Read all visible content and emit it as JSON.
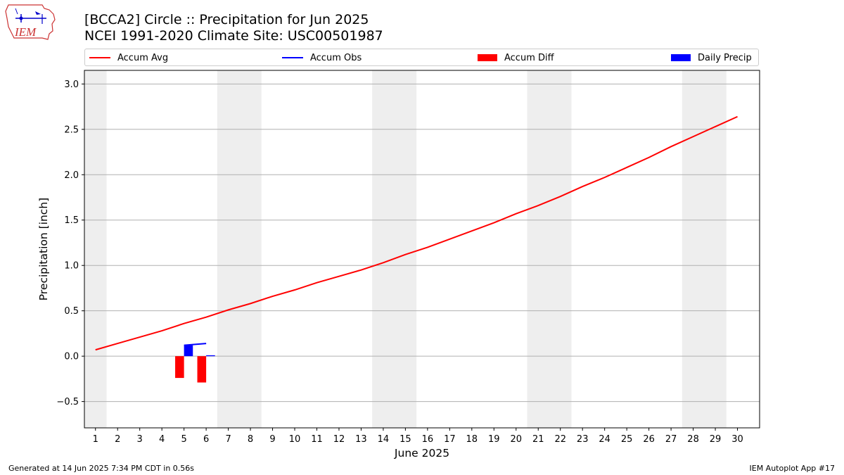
{
  "title_line1": "[BCCA2] Circle :: Precipitation for Jun 2025",
  "title_line2": "NCEI 1991-2020 Climate Site: USC00501987",
  "logo_text": "IEM",
  "legend": {
    "accum_avg": "Accum Avg",
    "accum_obs": "Accum Obs",
    "accum_diff": "Accum Diff",
    "daily_precip": "Daily Precip"
  },
  "colors": {
    "accum_avg": "#ff0000",
    "accum_obs": "#0000ff",
    "accum_diff": "#ff0000",
    "daily_precip": "#0000ff",
    "weekend": "#eeeeee",
    "grid": "#b0b0b0"
  },
  "footer_left": "Generated at 14 Jun 2025 7:34 PM CDT in 0.56s",
  "footer_right": "IEM Autoplot App #17",
  "chart_data": {
    "type": "line",
    "title": "[BCCA2] Circle :: Precipitation for Jun 2025",
    "xlabel": "June 2025",
    "ylabel": "Precipitation [inch]",
    "xlim": [
      0.5,
      31
    ],
    "ylim": [
      -0.79,
      3.15
    ],
    "yticks": [
      -0.5,
      0.0,
      0.5,
      1.0,
      1.5,
      2.0,
      2.5,
      3.0
    ],
    "ytick_labels": [
      "−0.5",
      "0.0",
      "0.5",
      "1.0",
      "1.5",
      "2.0",
      "2.5",
      "3.0"
    ],
    "x": [
      1,
      2,
      3,
      4,
      5,
      6,
      7,
      8,
      9,
      10,
      11,
      12,
      13,
      14,
      15,
      16,
      17,
      18,
      19,
      20,
      21,
      22,
      23,
      24,
      25,
      26,
      27,
      28,
      29,
      30
    ],
    "xtick_labels": [
      "1",
      "2",
      "3",
      "4",
      "5",
      "6",
      "7",
      "8",
      "9",
      "10",
      "11",
      "12",
      "13",
      "14",
      "15",
      "16",
      "17",
      "18",
      "19",
      "20",
      "21",
      "22",
      "23",
      "24",
      "25",
      "26",
      "27",
      "28",
      "29",
      "30"
    ],
    "weekend_spans": [
      [
        0.5,
        1.5
      ],
      [
        6.5,
        8.5
      ],
      [
        13.5,
        15.5
      ],
      [
        20.5,
        22.5
      ],
      [
        27.5,
        29.5
      ]
    ],
    "grid": "horizontal",
    "series": [
      {
        "name": "Accum Avg",
        "type": "line",
        "x": [
          1,
          2,
          3,
          4,
          5,
          6,
          7,
          8,
          9,
          10,
          11,
          12,
          13,
          14,
          15,
          16,
          17,
          18,
          19,
          20,
          21,
          22,
          23,
          24,
          25,
          26,
          27,
          28,
          29,
          30
        ],
        "values": [
          0.07,
          0.14,
          0.21,
          0.28,
          0.36,
          0.43,
          0.51,
          0.58,
          0.66,
          0.73,
          0.81,
          0.88,
          0.95,
          1.03,
          1.12,
          1.2,
          1.29,
          1.38,
          1.47,
          1.57,
          1.66,
          1.76,
          1.87,
          1.97,
          2.08,
          2.19,
          2.31,
          2.42,
          2.53,
          2.64
        ]
      },
      {
        "name": "Accum Obs",
        "type": "line",
        "x": [
          5,
          6
        ],
        "values": [
          0.12,
          0.14
        ]
      },
      {
        "name": "Accum Diff",
        "type": "bar",
        "x": [
          5,
          6
        ],
        "values": [
          -0.24,
          -0.29
        ],
        "offset": -0.2
      },
      {
        "name": "Daily Precip",
        "type": "bar",
        "x": [
          5,
          6
        ],
        "values": [
          0.12,
          0.01
        ],
        "offset": 0.2
      }
    ],
    "legend_position": "top"
  }
}
